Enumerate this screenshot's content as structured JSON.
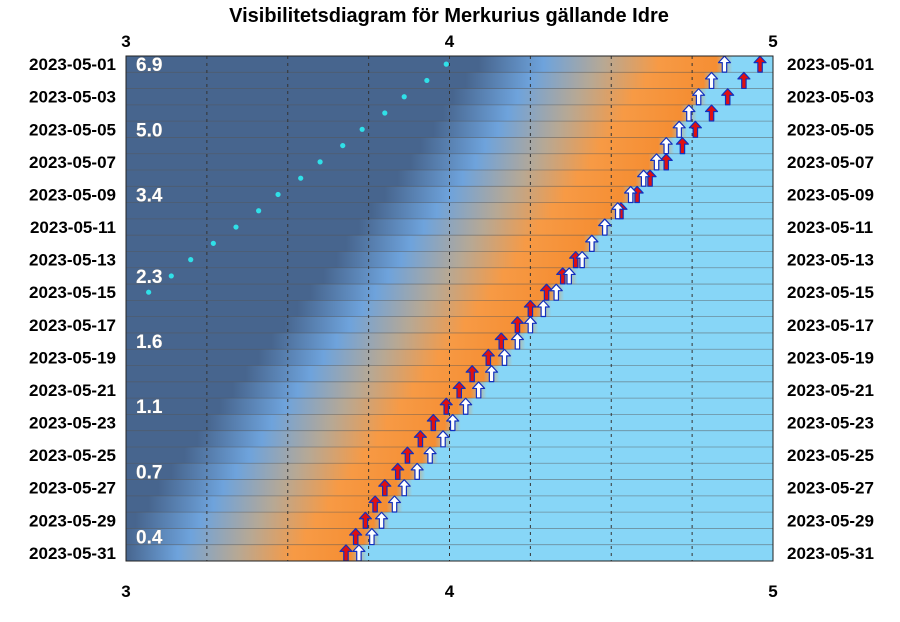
{
  "chart_data": {
    "type": "scatter",
    "title": "Visibilitetsdiagram för Merkurius gällande Idre",
    "x_axis": {
      "range": [
        3,
        5
      ],
      "ticks": [
        3,
        4,
        5
      ],
      "minor_gridlines_every": 0.25
    },
    "dates": [
      "2023-05-01",
      "2023-05-02",
      "2023-05-03",
      "2023-05-04",
      "2023-05-05",
      "2023-05-06",
      "2023-05-07",
      "2023-05-08",
      "2023-05-09",
      "2023-05-10",
      "2023-05-11",
      "2023-05-12",
      "2023-05-13",
      "2023-05-14",
      "2023-05-15",
      "2023-05-16",
      "2023-05-17",
      "2023-05-18",
      "2023-05-19",
      "2023-05-20",
      "2023-05-21",
      "2023-05-22",
      "2023-05-23",
      "2023-05-24",
      "2023-05-25",
      "2023-05-26",
      "2023-05-27",
      "2023-05-28",
      "2023-05-29",
      "2023-05-30",
      "2023-05-31"
    ],
    "date_labels": [
      "2023-05-01",
      "2023-05-03",
      "2023-05-05",
      "2023-05-07",
      "2023-05-09",
      "2023-05-11",
      "2023-05-13",
      "2023-05-15",
      "2023-05-17",
      "2023-05-19",
      "2023-05-21",
      "2023-05-23",
      "2023-05-25",
      "2023-05-27",
      "2023-05-29",
      "2023-05-31"
    ],
    "magnitude_labels": [
      {
        "date": "2023-05-01",
        "text": "6.9"
      },
      {
        "date": "2023-05-05",
        "text": "5.0"
      },
      {
        "date": "2023-05-09",
        "text": "3.4"
      },
      {
        "date": "2023-05-14",
        "text": "2.3"
      },
      {
        "date": "2023-05-18",
        "text": "1.6"
      },
      {
        "date": "2023-05-22",
        "text": "1.1"
      },
      {
        "date": "2023-05-26",
        "text": "0.7"
      },
      {
        "date": "2023-05-30",
        "text": "0.4"
      }
    ],
    "series": [
      {
        "marker": "red-arrow",
        "x": [
          4.96,
          4.91,
          4.86,
          4.81,
          4.76,
          4.72,
          4.67,
          4.62,
          4.58,
          4.53,
          4.48,
          4.44,
          4.39,
          4.35,
          4.3,
          4.25,
          4.21,
          4.16,
          4.12,
          4.07,
          4.03,
          3.99,
          3.95,
          3.91,
          3.87,
          3.84,
          3.8,
          3.77,
          3.74,
          3.71,
          3.68
        ]
      },
      {
        "marker": "white-arrow",
        "x": [
          4.85,
          4.81,
          4.77,
          4.74,
          4.71,
          4.67,
          4.64,
          4.6,
          4.56,
          4.52,
          4.48,
          4.44,
          4.41,
          4.37,
          4.33,
          4.29,
          4.25,
          4.21,
          4.17,
          4.13,
          4.09,
          4.05,
          4.01,
          3.98,
          3.94,
          3.9,
          3.86,
          3.83,
          3.79,
          3.76,
          3.72
        ]
      },
      {
        "marker": "cyan-dot",
        "x": [
          3.99,
          3.93,
          3.86,
          3.8,
          3.73,
          3.67,
          3.6,
          3.54,
          3.47,
          3.41,
          3.34,
          3.27,
          3.2,
          3.14,
          3.07
        ]
      }
    ],
    "colors": {
      "night": "#47658e",
      "twilight": "#6ea3dc",
      "dusk_grey": "#b7a894",
      "sunset_orange": "#f79a45",
      "day": "#87d6f7",
      "red_arrow": "#e01010",
      "white_arrow": "#ffffff",
      "arrow_outline": "#1030c0",
      "cyan_dot": "#30e0e8"
    }
  }
}
